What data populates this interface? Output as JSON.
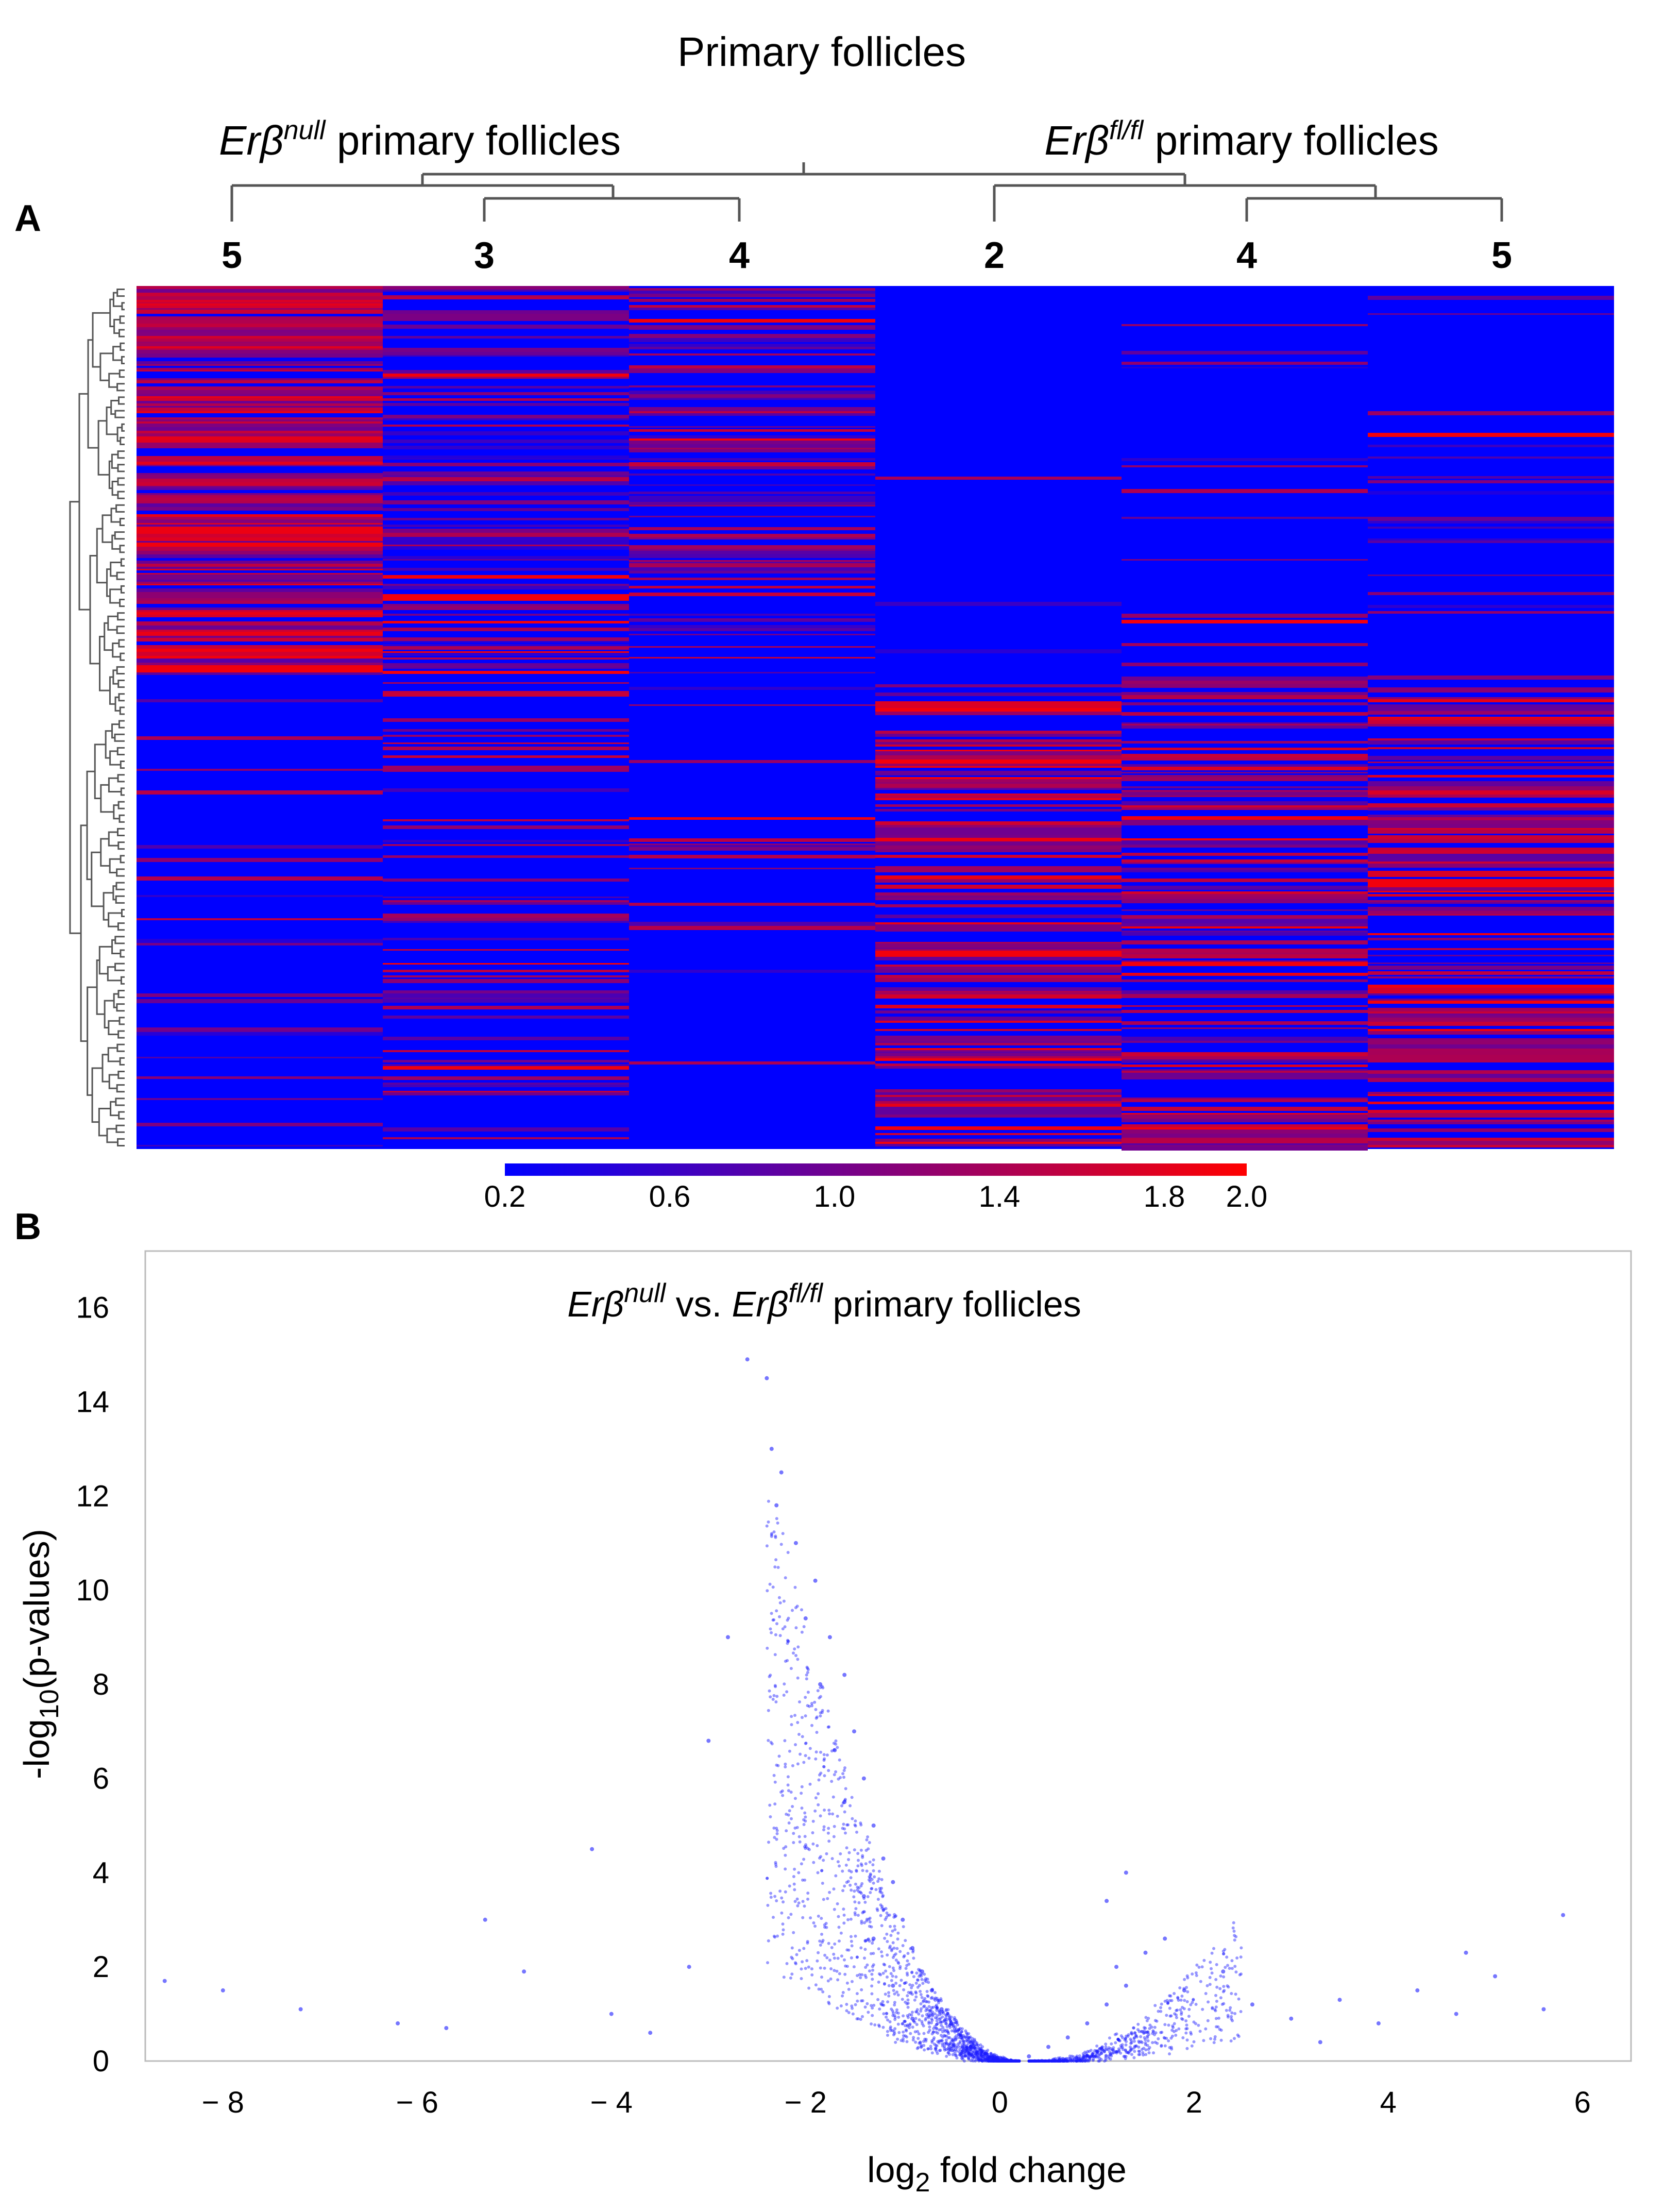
{
  "figure_title": "Primary follicles",
  "panel_labels": [
    "A",
    "B"
  ],
  "group_labels": [
    {
      "genotype_base": "Erβ",
      "genotype_sup": "null",
      "suffix": " primary follicles"
    },
    {
      "genotype_base": "Erβ",
      "genotype_sup": "fl/fl",
      "suffix": " primary follicles"
    }
  ],
  "colors": {
    "low": "#0000ff",
    "high": "#ff0000",
    "points": "#1a1aff",
    "dendrogram": "#555555"
  },
  "chart_data": [
    {
      "type": "heatmap",
      "columns": [
        "5",
        "3",
        "4",
        "2",
        "4",
        "5"
      ],
      "column_groups": [
        0,
        0,
        0,
        1,
        1,
        1
      ],
      "colorbar": {
        "min": 0.2,
        "max": 2.0,
        "ticks": [
          "0.2",
          "0.6",
          "1.0",
          "1.4",
          "1.8",
          "2.0"
        ]
      },
      "row_dendrogram": true,
      "column_dendrogram": true
    },
    {
      "type": "scatter",
      "title": {
        "part1_base": "Erβ",
        "part1_sup": "null",
        "mid": " vs. ",
        "part2_base": "Erβ",
        "part2_sup": "fl/fl",
        "suffix": " primary follicles"
      },
      "xlabel": {
        "base": "log",
        "sub": "2",
        "rest": " fold change"
      },
      "ylabel": {
        "base": "-log",
        "sub": "10",
        "rest": "(p-values)"
      },
      "xlim": [
        -8.8,
        6.5
      ],
      "ylim": [
        0,
        17.2
      ],
      "xticks": [
        -8,
        -6,
        -4,
        -2,
        0,
        2,
        4,
        6
      ],
      "xtick_labels": [
        "− 8",
        "− 6",
        "− 4",
        "− 2",
        "0",
        "2",
        "4",
        "6"
      ],
      "yticks": [
        0,
        2,
        4,
        6,
        8,
        10,
        12,
        14,
        16
      ],
      "ytick_labels": [
        "0",
        "2",
        "4",
        "6",
        "8",
        "10",
        "12",
        "14",
        "16"
      ],
      "grid": false,
      "legend": "none",
      "series": [
        {
          "points": [
            [
              -8.6,
              1.7
            ],
            [
              -8.0,
              1.5
            ],
            [
              -7.2,
              1.1
            ],
            [
              -6.2,
              0.8
            ],
            [
              -5.7,
              0.7
            ],
            [
              -5.3,
              3.0
            ],
            [
              -4.9,
              1.9
            ],
            [
              -4.2,
              4.5
            ],
            [
              -4.0,
              1.0
            ],
            [
              -3.6,
              0.6
            ],
            [
              -3.2,
              2.0
            ],
            [
              -3.0,
              6.8
            ],
            [
              -2.8,
              9.0
            ],
            [
              -2.6,
              14.9
            ],
            [
              -2.4,
              14.5
            ],
            [
              -2.35,
              13.0
            ],
            [
              -2.25,
              12.5
            ],
            [
              -2.3,
              11.8
            ],
            [
              -2.1,
              11.0
            ],
            [
              -1.9,
              10.2
            ],
            [
              -2.0,
              9.4
            ],
            [
              -1.75,
              9.0
            ],
            [
              -1.6,
              8.2
            ],
            [
              -1.85,
              8.0
            ],
            [
              -1.5,
              7.0
            ],
            [
              -1.7,
              6.6
            ],
            [
              -1.4,
              6.0
            ],
            [
              -1.3,
              5.0
            ],
            [
              -1.6,
              5.5
            ],
            [
              -1.2,
              4.3
            ],
            [
              -1.1,
              3.8
            ],
            [
              -1.4,
              3.5
            ],
            [
              -1.0,
              3.0
            ],
            [
              -0.9,
              2.4
            ],
            [
              -1.3,
              2.6
            ],
            [
              -0.8,
              1.9
            ],
            [
              -0.7,
              1.5
            ],
            [
              -1.1,
              1.6
            ],
            [
              -0.6,
              1.1
            ],
            [
              -0.5,
              0.8
            ],
            [
              -0.9,
              0.9
            ],
            [
              -0.4,
              0.5
            ],
            [
              -0.3,
              0.3
            ],
            [
              -0.2,
              0.15
            ],
            [
              0.05,
              0.05
            ],
            [
              0.3,
              0.1
            ],
            [
              0.5,
              0.3
            ],
            [
              0.7,
              0.5
            ],
            [
              0.9,
              0.8
            ],
            [
              1.1,
              1.2
            ],
            [
              1.3,
              1.6
            ],
            [
              1.2,
              2.0
            ],
            [
              1.5,
              2.3
            ],
            [
              1.7,
              2.6
            ],
            [
              1.1,
              3.4
            ],
            [
              1.9,
              1.5
            ],
            [
              2.3,
              1.9
            ],
            [
              2.6,
              1.2
            ],
            [
              3.0,
              0.9
            ],
            [
              3.5,
              1.3
            ],
            [
              3.9,
              0.8
            ],
            [
              4.3,
              1.5
            ],
            [
              4.7,
              1.0
            ],
            [
              5.1,
              1.8
            ],
            [
              5.6,
              1.1
            ],
            [
              5.8,
              3.1
            ],
            [
              4.8,
              2.3
            ],
            [
              3.3,
              0.4
            ],
            [
              1.3,
              4.0
            ]
          ]
        }
      ]
    }
  ]
}
